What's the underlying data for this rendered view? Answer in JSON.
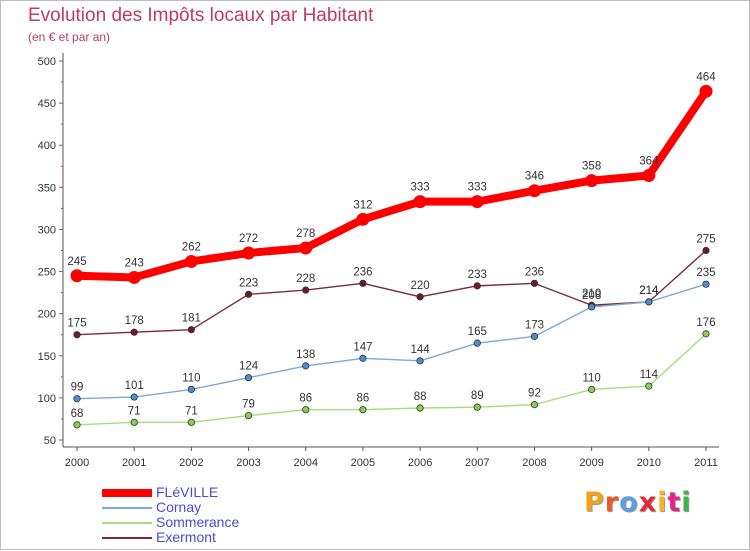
{
  "title": "Evolution des Impôts locaux par Habitant",
  "subtitle": "(en € et par an)",
  "logo": {
    "text": "Proxiti",
    "letter_colors": [
      "#f3a21c",
      "#e85a2a",
      "#5aa0dc",
      "#e02a3c",
      "#f0b624",
      "#e52485",
      "#3cb44b"
    ]
  },
  "chart_data": {
    "type": "line",
    "x": [
      "2000",
      "2001",
      "2002",
      "2003",
      "2004",
      "2005",
      "2006",
      "2007",
      "2008",
      "2009",
      "2010",
      "2011"
    ],
    "ylim": [
      50,
      500
    ],
    "yticks": [
      "50",
      "100",
      "150",
      "200",
      "250",
      "300",
      "350",
      "400",
      "450",
      "500"
    ],
    "series": [
      {
        "name": "FLéVILLE",
        "color": "#ff0000",
        "line_color": "#ff0000",
        "values": [
          245,
          243,
          262,
          272,
          278,
          312,
          333,
          333,
          346,
          358,
          364,
          464
        ],
        "labels": [
          "245",
          "243",
          "262",
          "272",
          "278",
          "312",
          "333",
          "333",
          "346",
          "358",
          "364",
          "464"
        ]
      },
      {
        "name": "Cornay",
        "color": "#4a8fcf",
        "line_color": "#7aa9d6",
        "values": [
          99,
          101,
          110,
          124,
          138,
          147,
          144,
          165,
          173,
          208,
          214,
          235
        ],
        "labels": [
          "99",
          "101",
          "110",
          "124",
          "138",
          "147",
          "144",
          "165",
          "173",
          "208",
          "214",
          "235"
        ]
      },
      {
        "name": "Sommerance",
        "color": "#86d14f",
        "line_color": "#a6dd7a",
        "values": [
          68,
          71,
          71,
          79,
          86,
          86,
          88,
          89,
          92,
          110,
          114,
          176
        ],
        "labels": [
          "68",
          "71",
          "71",
          "79",
          "86",
          "86",
          "88",
          "89",
          "92",
          "110",
          "114",
          "176"
        ]
      },
      {
        "name": "Exermont",
        "color": "#6e1a2a",
        "line_color": "#7a2a3a",
        "values": [
          175,
          178,
          181,
          223,
          228,
          236,
          220,
          233,
          236,
          210,
          214,
          275
        ],
        "labels": [
          "175",
          "178",
          "181",
          "223",
          "228",
          "236",
          "220",
          "233",
          "236",
          "210",
          "214",
          "275"
        ]
      }
    ]
  }
}
